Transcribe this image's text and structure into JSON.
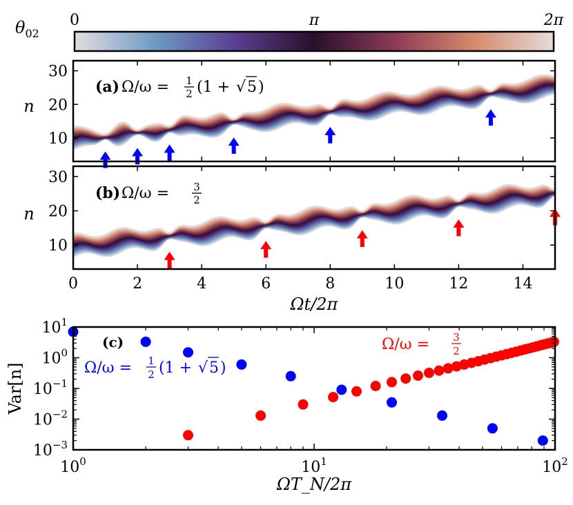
{
  "colorbar": {
    "label": "θ",
    "label_sub": "02",
    "ticks": [
      "0",
      "π",
      "2π"
    ],
    "colors": [
      "#e4dde3",
      "#6e9bc4",
      "#5b3f92",
      "#2b0f2e",
      "#8b3b56",
      "#d58a6a",
      "#e6dcd9"
    ]
  },
  "chart_data": [
    {
      "type": "line",
      "panel": "(a)",
      "title": "(a) Ω/ω = ½(1 + √5)",
      "title_parts": {
        "tag": "(a)",
        "lhs": "Ω/ω =",
        "frac_num": "1",
        "frac_den": "2",
        "rest_open": "(1 +",
        "sqrt": "√",
        "sqrt_arg": "5",
        "rest_close": ")"
      },
      "ylabel": "n",
      "xlim": [
        0,
        15
      ],
      "ylim": [
        3,
        33
      ],
      "yticks": [
        10,
        20,
        30
      ],
      "ytick_labels": [
        "10",
        "20",
        "30"
      ],
      "series_count": 24,
      "arrow_color": "#0000ff",
      "arrows_x": [
        1,
        2,
        3,
        5,
        8,
        13
      ]
    },
    {
      "type": "line",
      "panel": "(b)",
      "title": "(b) Ω/ω = 3/2",
      "title_parts": {
        "tag": "(b)",
        "lhs": "Ω/ω =",
        "frac_num": "3",
        "frac_den": "2"
      },
      "ylabel": "n",
      "xlabel": "Ωt/2π",
      "xlim": [
        0,
        15
      ],
      "ylim": [
        3,
        33
      ],
      "xticks": [
        0,
        2,
        4,
        6,
        8,
        10,
        12,
        14
      ],
      "xtick_labels": [
        "0",
        "2",
        "4",
        "6",
        "8",
        "10",
        "12",
        "14"
      ],
      "yticks": [
        10,
        20,
        30
      ],
      "ytick_labels": [
        "10",
        "20",
        "30"
      ],
      "series_count": 24,
      "arrow_color": "#ff0000",
      "arrows_x": [
        3,
        6,
        9,
        12,
        15
      ]
    },
    {
      "type": "scatter",
      "panel": "(c)",
      "xscale": "log",
      "yscale": "log",
      "xlim": [
        1,
        100
      ],
      "ylim": [
        0.001,
        10
      ],
      "xlabel": "ΩT_N/2π",
      "ylabel": "Var[n]",
      "xtick_labels": [
        [
          "10",
          "0"
        ],
        [
          "10",
          "1"
        ],
        [
          "10",
          "2"
        ]
      ],
      "ytick_labels": [
        [
          "10",
          "−3"
        ],
        [
          "10",
          "−2"
        ],
        [
          "10",
          "−1"
        ],
        [
          "10",
          "0"
        ],
        [
          "10",
          "1"
        ]
      ],
      "series": [
        {
          "name": "Ω/ω = ½(1 + √5)",
          "label_parts": {
            "lhs": "Ω/ω =",
            "frac_num": "1",
            "frac_den": "2",
            "rest_open": "(1 +",
            "sqrt": "√",
            "sqrt_arg": "5",
            "rest_close": ")"
          },
          "color": "#0000ff",
          "x": [
            1,
            2,
            3,
            5,
            8,
            13,
            21,
            34,
            55,
            89
          ],
          "y": [
            7.0,
            3.3,
            1.5,
            0.6,
            0.25,
            0.09,
            0.035,
            0.013,
            0.005,
            0.002
          ]
        },
        {
          "name": "Ω/ω = 3/2",
          "label_parts": {
            "lhs": "Ω/ω =",
            "frac_num": "3",
            "frac_den": "2"
          },
          "color": "#ff0000",
          "x": [
            3,
            6,
            9,
            12,
            15,
            18,
            21,
            24,
            27,
            30,
            33,
            36,
            39,
            42,
            45,
            48,
            51,
            54,
            57,
            60,
            63,
            66,
            69,
            72,
            75,
            78,
            81,
            84,
            87,
            90,
            93,
            96,
            99
          ],
          "y": [
            0.003,
            0.013,
            0.03,
            0.052,
            0.08,
            0.12,
            0.16,
            0.21,
            0.26,
            0.32,
            0.38,
            0.45,
            0.52,
            0.6,
            0.68,
            0.77,
            0.87,
            0.97,
            1.08,
            1.19,
            1.31,
            1.44,
            1.57,
            1.71,
            1.86,
            2.01,
            2.17,
            2.34,
            2.52,
            2.7,
            2.89,
            3.08,
            3.3
          ]
        }
      ],
      "panel_label": "(c)"
    }
  ]
}
